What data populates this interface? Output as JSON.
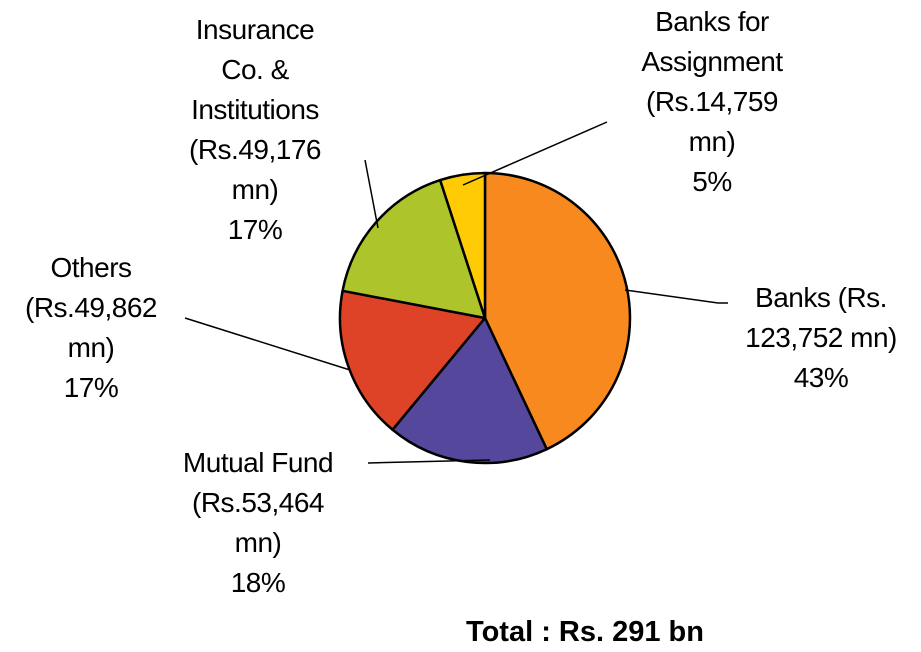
{
  "chart_data": {
    "type": "pie",
    "categories": [
      "Banks (Rs. 123,752 mn)",
      "Mutual Fund (Rs.53,464 mn)",
      "Others (Rs.49,862 mn)",
      "Insurance Co. & Institutions (Rs.49,176 mn)",
      "Banks for Assignment (Rs.14,759 mn)"
    ],
    "values": [
      43,
      18,
      17,
      17,
      5
    ],
    "value_labels": [
      "43%",
      "18%",
      "17%",
      "17%",
      "5%"
    ],
    "colors": [
      "#f7891f",
      "#55479c",
      "#de4227",
      "#adc52b",
      "#ffcb05"
    ],
    "annotation": "Total : Rs. 291 bn"
  }
}
